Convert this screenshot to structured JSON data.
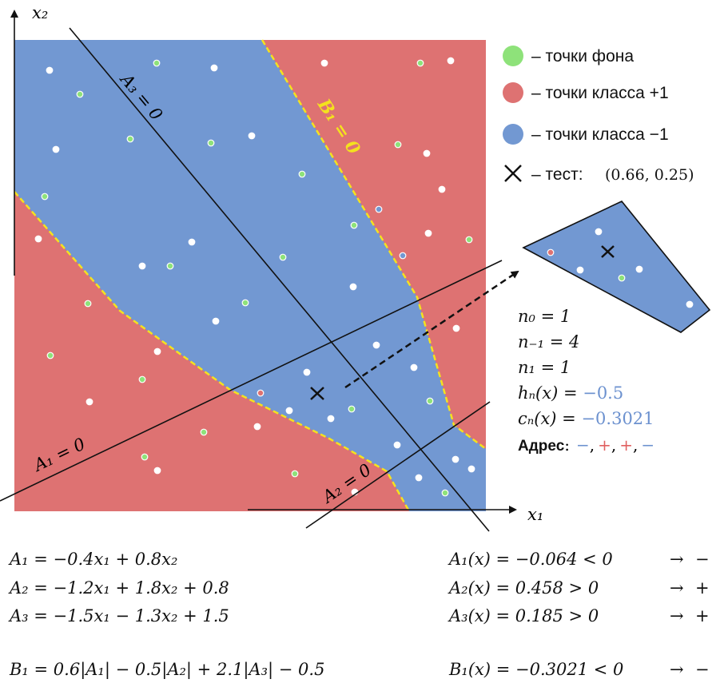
{
  "axes": {
    "x_label": "x₁",
    "y_label": "x₂"
  },
  "colors": {
    "class_plus": "#de7272",
    "class_minus": "#7298d2",
    "background_point": "#8ee27a",
    "boundary_yellow": "#f4e21e",
    "minus_sign": "#6c91cf",
    "plus_sign": "#e06060"
  },
  "plot_labels": {
    "a1": "A₁ = 0",
    "a2": "A₂ = 0",
    "a3": "A₃ = 0",
    "b1": "B₁ = 0"
  },
  "legend": [
    {
      "symbol": "green-dot",
      "text": "– точки фона"
    },
    {
      "symbol": "red-dot",
      "text": "– точки класса +1"
    },
    {
      "symbol": "blue-dot",
      "text": "– точки класса −1"
    },
    {
      "symbol": "cross",
      "text": "– тест:",
      "value": "(0.66, 0.25)"
    }
  ],
  "stats": {
    "n0": "n₀ = 1",
    "n_minus1": "n₋₁ = 4",
    "n1": "n₁ = 1",
    "h_label": "hₙ(x) = ",
    "h_value": "−0.5",
    "c_label": "cₙ(x) = ",
    "c_value": "−0.3021",
    "address_label": "Адрес",
    "address_colon": ":",
    "address_signs": [
      "−",
      "+",
      "+",
      "−"
    ]
  },
  "formulas_left": [
    "A₁ = −0.4x₁ + 0.8x₂",
    "A₂ = −1.2x₁ + 1.8x₂ + 0.8",
    "A₃ = −1.5x₁ − 1.3x₂ + 1.5",
    "B₁ = 0.6|A₁| − 0.5|A₂| + 2.1|A₃| − 0.5"
  ],
  "formulas_right": [
    {
      "text": "A₁(x) = −0.064 < 0",
      "arrow": "→",
      "sign": "−"
    },
    {
      "text": "A₂(x) = 0.458 > 0",
      "arrow": "→",
      "sign": "+"
    },
    {
      "text": "A₃(x) = 0.185 > 0",
      "arrow": "→",
      "sign": "+"
    },
    {
      "text": "B₁(x) = −0.3021 < 0",
      "arrow": "→",
      "sign": "−"
    }
  ]
}
